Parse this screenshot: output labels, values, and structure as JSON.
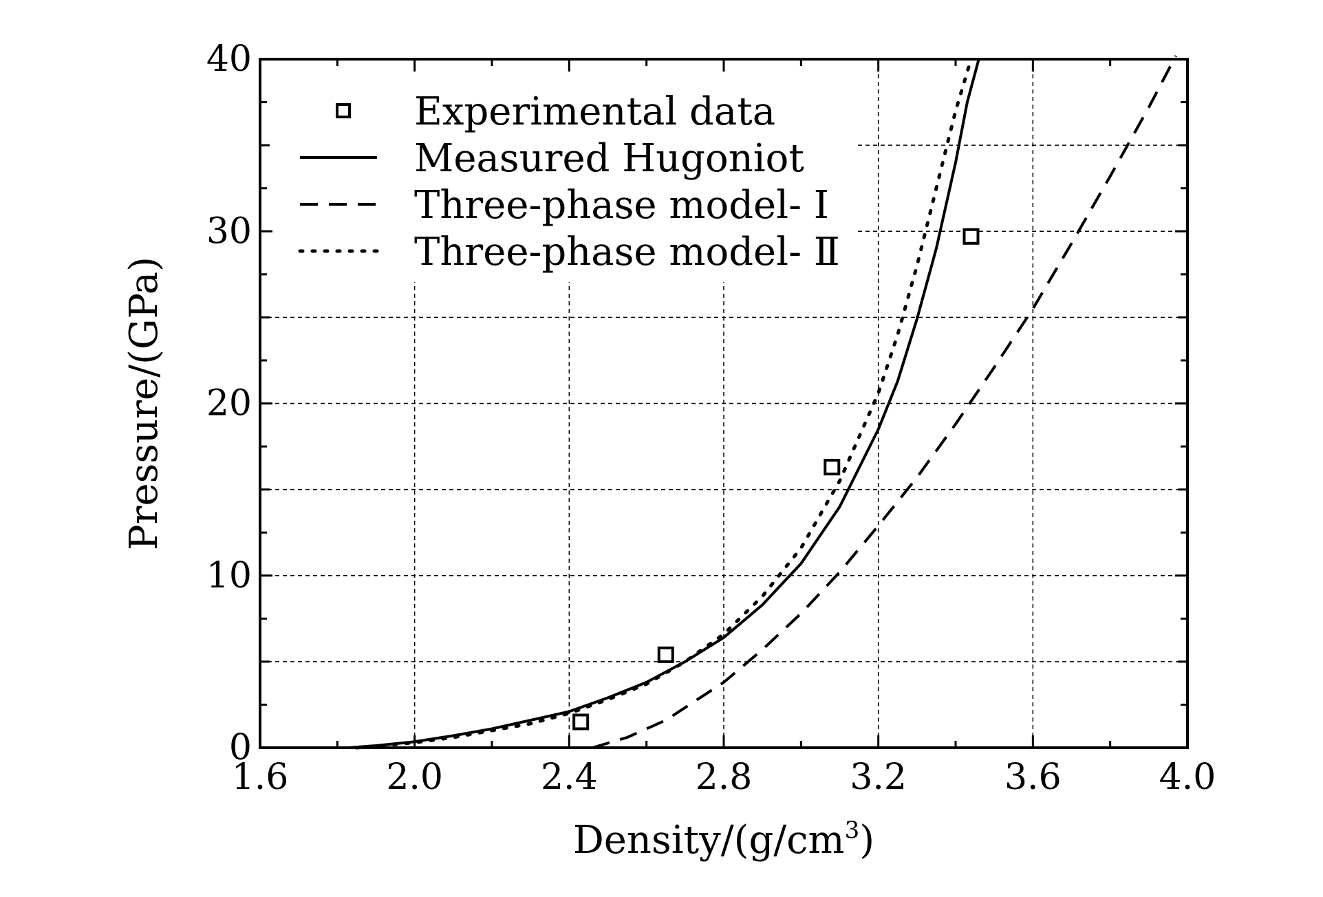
{
  "chart_data": {
    "type": "line",
    "xlabel": "Density/(g/cm",
    "xlabel_sup": "3",
    "xlabel_close": ")",
    "ylabel": "Pressure/(GPa)",
    "xlim": [
      1.6,
      4.0
    ],
    "ylim": [
      0,
      40
    ],
    "x_ticks": [
      "1.6",
      "2.0",
      "2.4",
      "2.8",
      "3.2",
      "3.6",
      "4.0"
    ],
    "y_ticks": [
      "0",
      "10",
      "20",
      "30",
      "40"
    ],
    "grid": true,
    "legend_position": "top-left",
    "series": [
      {
        "name": "Experimental data",
        "style": "square-markers",
        "points": [
          [
            2.43,
            1.5
          ],
          [
            2.65,
            5.4
          ],
          [
            3.08,
            16.3
          ],
          [
            3.44,
            29.7
          ]
        ]
      },
      {
        "name": "Measured Hugoniot",
        "style": "solid",
        "points": [
          [
            1.83,
            0
          ],
          [
            1.9,
            0.12
          ],
          [
            2.0,
            0.35
          ],
          [
            2.1,
            0.7
          ],
          [
            2.2,
            1.1
          ],
          [
            2.3,
            1.6
          ],
          [
            2.4,
            2.1
          ],
          [
            2.5,
            2.9
          ],
          [
            2.6,
            3.8
          ],
          [
            2.7,
            5.0
          ],
          [
            2.8,
            6.4
          ],
          [
            2.9,
            8.3
          ],
          [
            3.0,
            10.7
          ],
          [
            3.1,
            14.0
          ],
          [
            3.2,
            18.5
          ],
          [
            3.25,
            21.3
          ],
          [
            3.3,
            24.9
          ],
          [
            3.35,
            29.0
          ],
          [
            3.4,
            34.0
          ],
          [
            3.43,
            37.5
          ],
          [
            3.46,
            40.0
          ]
        ]
      },
      {
        "name": "Three-phase model- Ⅰ",
        "style": "dashed",
        "points": [
          [
            2.46,
            0
          ],
          [
            2.55,
            0.6
          ],
          [
            2.65,
            1.6
          ],
          [
            2.8,
            3.8
          ],
          [
            2.9,
            5.7
          ],
          [
            3.0,
            7.8
          ],
          [
            3.1,
            10.2
          ],
          [
            3.2,
            12.9
          ],
          [
            3.3,
            15.7
          ],
          [
            3.4,
            18.8
          ],
          [
            3.5,
            22.1
          ],
          [
            3.6,
            25.5
          ],
          [
            3.7,
            29.3
          ],
          [
            3.8,
            33.2
          ],
          [
            3.9,
            37.2
          ],
          [
            3.97,
            40.2
          ]
        ]
      },
      {
        "name": "Three-phase model- Ⅱ",
        "style": "dotted",
        "points": [
          [
            1.85,
            0
          ],
          [
            2.0,
            0.3
          ],
          [
            2.1,
            0.6
          ],
          [
            2.2,
            1.0
          ],
          [
            2.3,
            1.4
          ],
          [
            2.4,
            2.0
          ],
          [
            2.5,
            2.8
          ],
          [
            2.6,
            3.7
          ],
          [
            2.7,
            5.0
          ],
          [
            2.8,
            6.6
          ],
          [
            2.9,
            8.8
          ],
          [
            3.0,
            11.6
          ],
          [
            3.1,
            15.5
          ],
          [
            3.2,
            20.6
          ],
          [
            3.25,
            24.0
          ],
          [
            3.3,
            28.0
          ],
          [
            3.35,
            32.5
          ],
          [
            3.4,
            37.0
          ],
          [
            3.44,
            40.0
          ]
        ]
      }
    ]
  }
}
